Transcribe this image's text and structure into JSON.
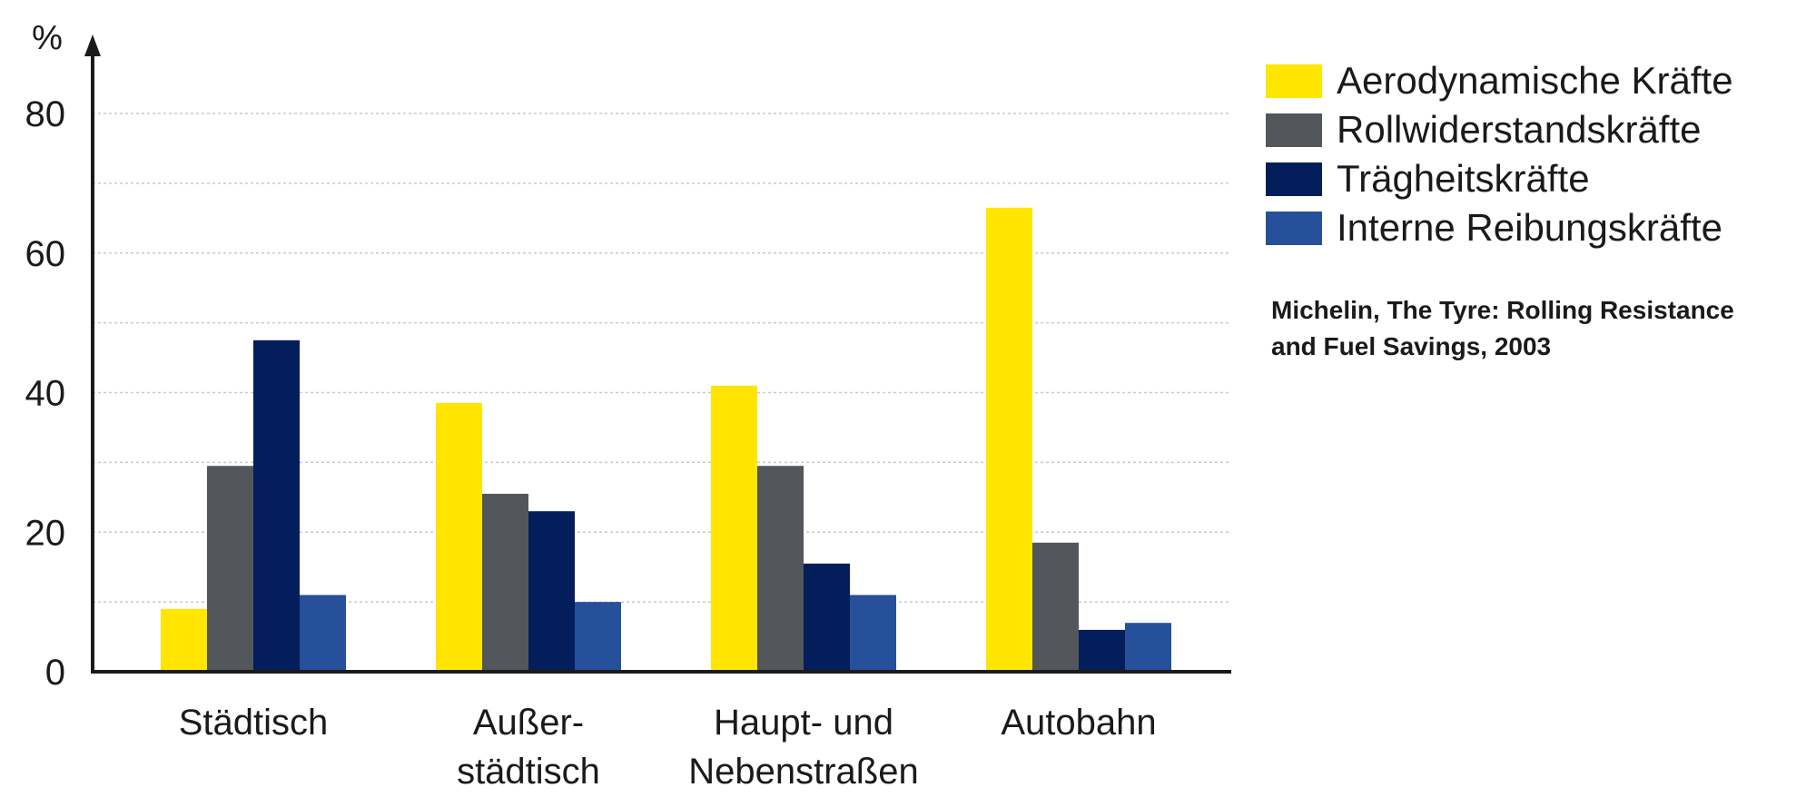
{
  "chart_data": {
    "type": "bar",
    "ylabel": "%",
    "ylim": [
      0,
      80
    ],
    "yticks": [
      0,
      20,
      40,
      60,
      80
    ],
    "grid": true,
    "legend_position": "right",
    "categories": [
      [
        "Städtisch"
      ],
      [
        "Außer-",
        "städtisch"
      ],
      [
        "Haupt- und",
        "Nebenstraßen"
      ],
      [
        "Autobahn"
      ]
    ],
    "series": [
      {
        "name": "Aerodynamische Kräfte",
        "color": "#FFE500",
        "values": [
          9,
          38.5,
          41,
          66.5
        ]
      },
      {
        "name": "Rollwiderstandskräfte",
        "color": "#53565A",
        "values": [
          29.5,
          25.5,
          29.5,
          18.5
        ]
      },
      {
        "name": "Trägheitskräfte",
        "color": "#031E5A",
        "values": [
          47.5,
          23,
          15.5,
          6
        ]
      },
      {
        "name": "Interne Reibungskräfte",
        "color": "#27509B",
        "values": [
          11,
          10,
          11,
          7
        ]
      }
    ]
  },
  "source": {
    "line1": "Michelin, The Tyre: Rolling Resistance",
    "line2": "and Fuel Savings, 2003"
  }
}
